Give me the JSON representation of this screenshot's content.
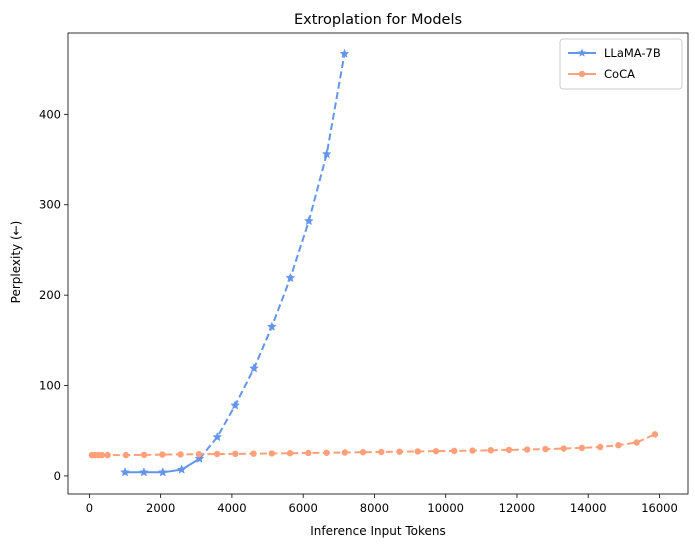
{
  "chart_data": {
    "type": "line",
    "title": "Extroplation for Models",
    "xlabel": "Inference Input Tokens",
    "ylabel": "Perplexity (←)",
    "xlim": [
      -600,
      16800
    ],
    "ylim": [
      -20,
      490
    ],
    "xticks": [
      0,
      2000,
      4000,
      6000,
      8000,
      10000,
      12000,
      14000,
      16000
    ],
    "yticks": [
      0,
      100,
      200,
      300,
      400
    ],
    "grid": false,
    "legend_position": "top-right",
    "series": [
      {
        "name": "LLaMA-7B",
        "color": "#6495ED",
        "marker": "star",
        "solid_until_index": 4,
        "x": [
          1000,
          1530,
          2060,
          2590,
          3090,
          3590,
          4090,
          4620,
          5120,
          5640,
          6160,
          6660,
          7160
        ],
        "y": [
          4,
          4,
          4,
          7,
          19,
          43,
          78,
          119,
          165,
          219,
          282,
          356,
          467
        ]
      },
      {
        "name": "CoCA",
        "color": "#FFA07A",
        "marker": "circle",
        "solid_until_index": 0,
        "x": [
          70,
          150,
          250,
          350,
          512,
          1024,
          1536,
          2048,
          2560,
          3072,
          3584,
          4096,
          4608,
          5120,
          5632,
          6144,
          6656,
          7168,
          7680,
          8192,
          8704,
          9216,
          9728,
          10240,
          10752,
          11264,
          11776,
          12288,
          12800,
          13312,
          13824,
          14336,
          14848,
          15360,
          15872
        ],
        "y": [
          23,
          23,
          23,
          23,
          23,
          23,
          23.3,
          23.6,
          23.8,
          24,
          24.2,
          24.4,
          24.6,
          24.9,
          25.1,
          25.4,
          25.6,
          25.9,
          26.2,
          26.5,
          26.8,
          27.1,
          27.4,
          27.7,
          28,
          28.4,
          28.8,
          29.2,
          29.7,
          30.3,
          31,
          32,
          34,
          37,
          46
        ]
      }
    ]
  }
}
